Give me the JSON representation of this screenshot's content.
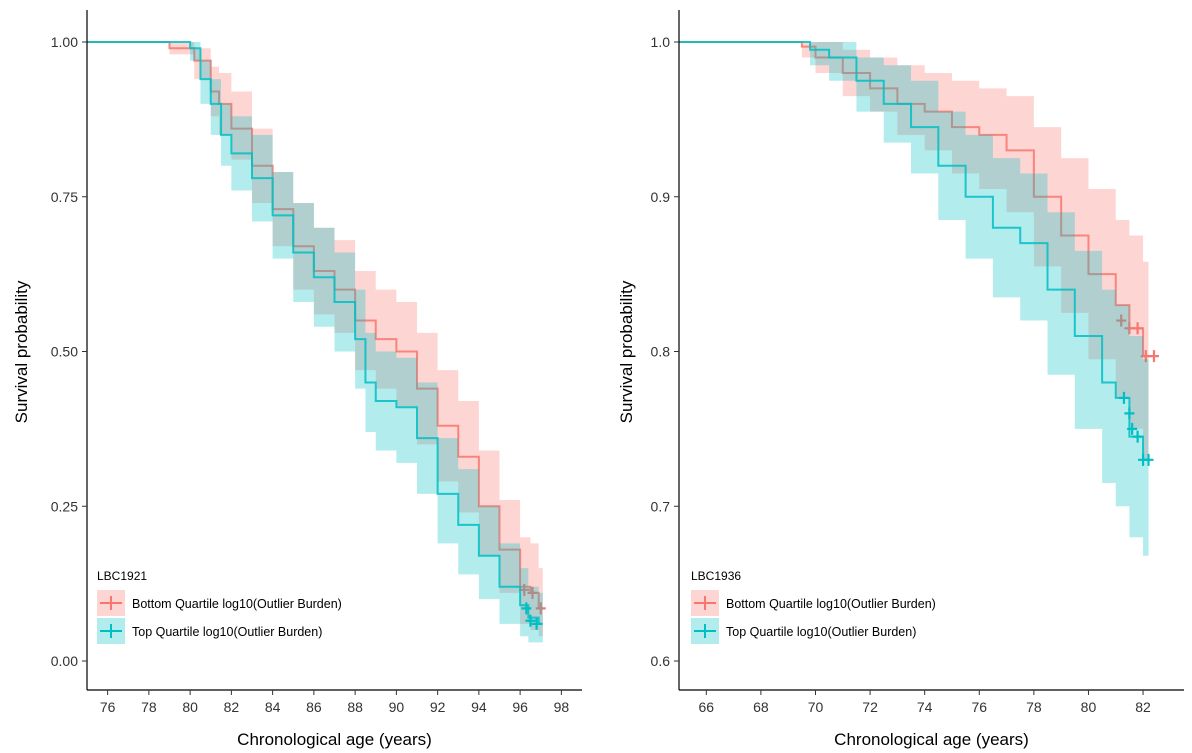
{
  "chart_data": [
    {
      "type": "line",
      "step": true,
      "xlabel": "Chronological age (years)",
      "ylabel": "Survival probability",
      "xlim": [
        75,
        99
      ],
      "ylim": [
        0,
        1
      ],
      "x_ticks": [
        76,
        78,
        80,
        82,
        84,
        86,
        88,
        90,
        92,
        94,
        96,
        98
      ],
      "y_ticks": [
        "0.00",
        "0.25",
        "0.50",
        "0.75",
        "1.00"
      ],
      "legend_title": "LBC1921",
      "legend_position": "bottom-left",
      "grid": false,
      "series": [
        {
          "name": "Bottom Quartile log10(Outlier Burden)",
          "color": "#F8766D",
          "fill": "#F8766D",
          "x": [
            75.0,
            79.0,
            80.2,
            81.0,
            81.4,
            82.0,
            83.0,
            84.0,
            85.0,
            86.0,
            87.0,
            88.0,
            89.0,
            90.0,
            91.0,
            92.0,
            93.0,
            94.0,
            95.0,
            96.0,
            96.5,
            96.9
          ],
          "y": [
            1.0,
            0.99,
            0.97,
            0.92,
            0.9,
            0.86,
            0.8,
            0.73,
            0.67,
            0.63,
            0.6,
            0.55,
            0.52,
            0.5,
            0.44,
            0.38,
            0.33,
            0.25,
            0.18,
            0.12,
            0.11,
            0.085
          ],
          "lower": [
            1.0,
            0.98,
            0.94,
            0.88,
            0.85,
            0.81,
            0.74,
            0.67,
            0.6,
            0.56,
            0.53,
            0.47,
            0.44,
            0.41,
            0.35,
            0.29,
            0.24,
            0.17,
            0.11,
            0.06,
            0.05,
            0.04
          ],
          "upper": [
            1.0,
            1.0,
            0.99,
            0.96,
            0.95,
            0.92,
            0.86,
            0.79,
            0.74,
            0.7,
            0.68,
            0.63,
            0.6,
            0.58,
            0.53,
            0.47,
            0.42,
            0.34,
            0.26,
            0.2,
            0.19,
            0.15
          ],
          "censor": [
            [
              96.2,
              0.115
            ],
            [
              96.6,
              0.11
            ],
            [
              97.0,
              0.085
            ]
          ]
        },
        {
          "name": "Top Quartile log10(Outlier Burden)",
          "color": "#00BFC4",
          "fill": "#00BFC4",
          "x": [
            75.0,
            80.0,
            80.5,
            81.0,
            81.5,
            82.0,
            83.0,
            84.0,
            85.0,
            86.0,
            87.0,
            88.0,
            88.5,
            89.0,
            90.0,
            91.0,
            92.0,
            93.0,
            94.0,
            95.0,
            96.0,
            96.4,
            96.9
          ],
          "y": [
            1.0,
            0.99,
            0.94,
            0.9,
            0.85,
            0.82,
            0.78,
            0.72,
            0.66,
            0.62,
            0.58,
            0.52,
            0.45,
            0.42,
            0.41,
            0.36,
            0.27,
            0.22,
            0.17,
            0.12,
            0.09,
            0.07,
            0.06
          ],
          "lower": [
            1.0,
            0.97,
            0.9,
            0.85,
            0.8,
            0.76,
            0.71,
            0.65,
            0.58,
            0.54,
            0.5,
            0.44,
            0.37,
            0.34,
            0.32,
            0.27,
            0.19,
            0.14,
            0.1,
            0.06,
            0.04,
            0.03,
            0.03
          ],
          "upper": [
            1.0,
            1.0,
            0.97,
            0.94,
            0.9,
            0.88,
            0.85,
            0.79,
            0.74,
            0.7,
            0.66,
            0.6,
            0.53,
            0.5,
            0.49,
            0.45,
            0.36,
            0.31,
            0.25,
            0.19,
            0.15,
            0.12,
            0.11
          ],
          "censor": [
            [
              96.3,
              0.085
            ],
            [
              96.5,
              0.065
            ],
            [
              96.8,
              0.06
            ]
          ]
        }
      ]
    },
    {
      "type": "line",
      "step": true,
      "xlabel": "Chronological age (years)",
      "ylabel": "Survival probability",
      "xlim": [
        65,
        83.5
      ],
      "ylim": [
        0.6,
        1.0
      ],
      "x_ticks": [
        66,
        68,
        70,
        72,
        74,
        76,
        78,
        80,
        82
      ],
      "y_ticks": [
        "0.6",
        "0.7",
        "0.8",
        "0.9",
        "1.0"
      ],
      "legend_title": "LBC1936",
      "legend_position": "bottom-left",
      "grid": false,
      "series": [
        {
          "name": "Bottom Quartile log10(Outlier Burden)",
          "color": "#F8766D",
          "fill": "#F8766D",
          "x": [
            65.0,
            69.5,
            70.0,
            71.0,
            72.0,
            73.0,
            74.0,
            75.0,
            76.0,
            77.0,
            78.0,
            79.0,
            80.0,
            81.0,
            81.5,
            82.0
          ],
          "y": [
            1.0,
            0.997,
            0.99,
            0.98,
            0.97,
            0.96,
            0.955,
            0.945,
            0.94,
            0.93,
            0.9,
            0.875,
            0.85,
            0.83,
            0.815,
            0.797
          ],
          "lower": [
            1.0,
            0.99,
            0.98,
            0.965,
            0.955,
            0.94,
            0.93,
            0.915,
            0.905,
            0.89,
            0.855,
            0.825,
            0.795,
            0.77,
            0.75,
            0.73
          ],
          "upper": [
            1.0,
            1.0,
            1.0,
            0.995,
            0.99,
            0.985,
            0.98,
            0.975,
            0.97,
            0.965,
            0.945,
            0.925,
            0.905,
            0.885,
            0.875,
            0.858
          ],
          "censor": [
            [
              81.2,
              0.82
            ],
            [
              81.5,
              0.815
            ],
            [
              81.8,
              0.815
            ],
            [
              82.1,
              0.797
            ],
            [
              82.4,
              0.797
            ]
          ]
        },
        {
          "name": "Top Quartile log10(Outlier Burden)",
          "color": "#00BFC4",
          "fill": "#00BFC4",
          "x": [
            65.0,
            69.8,
            70.5,
            71.5,
            72.5,
            73.5,
            74.5,
            75.5,
            76.5,
            77.5,
            78.5,
            79.5,
            80.5,
            81.0,
            81.5,
            82.0
          ],
          "y": [
            1.0,
            0.995,
            0.99,
            0.975,
            0.96,
            0.945,
            0.92,
            0.9,
            0.88,
            0.87,
            0.84,
            0.81,
            0.78,
            0.77,
            0.745,
            0.73
          ],
          "lower": [
            1.0,
            0.985,
            0.975,
            0.955,
            0.935,
            0.915,
            0.885,
            0.86,
            0.835,
            0.82,
            0.785,
            0.75,
            0.715,
            0.7,
            0.68,
            0.668
          ],
          "upper": [
            1.0,
            1.0,
            1.0,
            0.99,
            0.985,
            0.975,
            0.955,
            0.94,
            0.925,
            0.915,
            0.89,
            0.865,
            0.84,
            0.83,
            0.81,
            0.795
          ],
          "censor": [
            [
              81.3,
              0.77
            ],
            [
              81.5,
              0.76
            ],
            [
              81.6,
              0.75
            ],
            [
              81.8,
              0.745
            ],
            [
              82.0,
              0.73
            ],
            [
              82.2,
              0.73
            ]
          ]
        }
      ]
    }
  ]
}
